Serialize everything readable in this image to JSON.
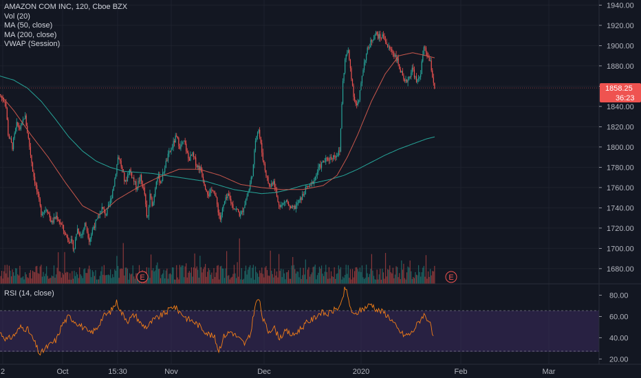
{
  "title": "AMAZON COM INC, 120, Cboe BZX",
  "indicators": [
    "Vol (20)",
    "MA (50, close)",
    "MA (200, close)",
    "VWAP (Session)"
  ],
  "rsi_title": "RSI (14, close)",
  "colors": {
    "background": "#131722",
    "up": "#26a69a",
    "down": "#ef5350",
    "ma50": "#c9574c",
    "ma200": "#26a69a",
    "rsi_line": "#f57f17",
    "rsi_band": "#3a2a5c",
    "grid": "#1e222d",
    "price_tag": "#ef5350"
  },
  "price_axis": {
    "ticks": [
      "1940.00",
      "1920.00",
      "1900.00",
      "1880.00",
      "1860.00",
      "1840.00",
      "1820.00",
      "1800.00",
      "1780.00",
      "1760.00",
      "1740.00",
      "1720.00",
      "1700.00",
      "1680.00"
    ]
  },
  "rsi_axis": {
    "ticks": [
      "80.00",
      "60.00",
      "40.00",
      "20.00"
    ]
  },
  "last_price": "1858.25",
  "countdown": "36:23",
  "earnings_markers": [
    "E",
    "E"
  ],
  "time_axis": {
    "labels": [
      "2",
      "Oct",
      "15:30",
      "Nov",
      "Dec",
      "2020",
      "Feb",
      "Mar"
    ]
  },
  "chart_data": {
    "type": "candlestick",
    "symbol": "AMAZON COM INC",
    "interval": "120",
    "exchange": "Cboe BZX",
    "y_range": [
      1665,
      1945
    ],
    "rsi_range": [
      15,
      90
    ],
    "rsi_levels": [
      70,
      30
    ],
    "price_anchors": [
      [
        0,
        1850
      ],
      [
        8,
        1845
      ],
      [
        12,
        1812
      ],
      [
        18,
        1800
      ],
      [
        24,
        1822
      ],
      [
        30,
        1818
      ],
      [
        36,
        1832
      ],
      [
        42,
        1805
      ],
      [
        48,
        1775
      ],
      [
        54,
        1755
      ],
      [
        60,
        1735
      ],
      [
        68,
        1740
      ],
      [
        75,
        1725
      ],
      [
        82,
        1732
      ],
      [
        90,
        1722
      ],
      [
        96,
        1712
      ],
      [
        102,
        1708
      ],
      [
        108,
        1700
      ],
      [
        112,
        1720
      ],
      [
        118,
        1712
      ],
      [
        124,
        1725
      ],
      [
        130,
        1708
      ],
      [
        136,
        1722
      ],
      [
        142,
        1728
      ],
      [
        148,
        1740
      ],
      [
        154,
        1733
      ],
      [
        160,
        1745
      ],
      [
        166,
        1765
      ],
      [
        172,
        1792
      ],
      [
        176,
        1782
      ],
      [
        182,
        1764
      ],
      [
        188,
        1778
      ],
      [
        194,
        1768
      ],
      [
        198,
        1760
      ],
      [
        204,
        1770
      ],
      [
        210,
        1755
      ],
      [
        214,
        1725
      ],
      [
        218,
        1752
      ],
      [
        222,
        1742
      ],
      [
        228,
        1772
      ],
      [
        234,
        1765
      ],
      [
        240,
        1782
      ],
      [
        244,
        1790
      ],
      [
        250,
        1800
      ],
      [
        256,
        1810
      ],
      [
        262,
        1800
      ],
      [
        268,
        1805
      ],
      [
        274,
        1788
      ],
      [
        280,
        1792
      ],
      [
        286,
        1782
      ],
      [
        292,
        1778
      ],
      [
        298,
        1762
      ],
      [
        304,
        1752
      ],
      [
        310,
        1760
      ],
      [
        316,
        1742
      ],
      [
        320,
        1728
      ],
      [
        326,
        1745
      ],
      [
        332,
        1752
      ],
      [
        338,
        1742
      ],
      [
        344,
        1738
      ],
      [
        350,
        1732
      ],
      [
        356,
        1745
      ],
      [
        362,
        1758
      ],
      [
        368,
        1778
      ],
      [
        372,
        1812
      ],
      [
        376,
        1818
      ],
      [
        380,
        1798
      ],
      [
        384,
        1782
      ],
      [
        388,
        1770
      ],
      [
        392,
        1760
      ],
      [
        398,
        1768
      ],
      [
        404,
        1745
      ],
      [
        410,
        1742
      ],
      [
        416,
        1748
      ],
      [
        422,
        1738
      ],
      [
        428,
        1740
      ],
      [
        434,
        1745
      ],
      [
        440,
        1752
      ],
      [
        446,
        1760
      ],
      [
        452,
        1762
      ],
      [
        458,
        1770
      ],
      [
        464,
        1780
      ],
      [
        470,
        1785
      ],
      [
        476,
        1788
      ],
      [
        482,
        1790
      ],
      [
        488,
        1792
      ],
      [
        494,
        1795
      ],
      [
        498,
        1860
      ],
      [
        502,
        1888
      ],
      [
        506,
        1895
      ],
      [
        510,
        1875
      ],
      [
        514,
        1852
      ],
      [
        518,
        1840
      ],
      [
        522,
        1845
      ],
      [
        526,
        1870
      ],
      [
        530,
        1885
      ],
      [
        534,
        1895
      ],
      [
        540,
        1905
      ],
      [
        546,
        1912
      ],
      [
        552,
        1908
      ],
      [
        558,
        1910
      ],
      [
        564,
        1898
      ],
      [
        570,
        1895
      ],
      [
        576,
        1888
      ],
      [
        582,
        1876
      ],
      [
        588,
        1862
      ],
      [
        594,
        1868
      ],
      [
        600,
        1878
      ],
      [
        606,
        1862
      ],
      [
        612,
        1875
      ],
      [
        616,
        1898
      ],
      [
        620,
        1892
      ],
      [
        626,
        1882
      ],
      [
        630,
        1865
      ],
      [
        632,
        1858
      ]
    ],
    "ma50_anchors": [
      [
        0,
        1852
      ],
      [
        20,
        1836
      ],
      [
        45,
        1812
      ],
      [
        70,
        1790
      ],
      [
        95,
        1765
      ],
      [
        120,
        1742
      ],
      [
        145,
        1733
      ],
      [
        170,
        1748
      ],
      [
        200,
        1760
      ],
      [
        230,
        1770
      ],
      [
        260,
        1778
      ],
      [
        290,
        1778
      ],
      [
        320,
        1772
      ],
      [
        350,
        1763
      ],
      [
        380,
        1760
      ],
      [
        410,
        1758
      ],
      [
        440,
        1758
      ],
      [
        470,
        1762
      ],
      [
        490,
        1772
      ],
      [
        505,
        1790
      ],
      [
        520,
        1812
      ],
      [
        540,
        1845
      ],
      [
        560,
        1872
      ],
      [
        580,
        1890
      ],
      [
        600,
        1893
      ],
      [
        620,
        1890
      ],
      [
        632,
        1888
      ]
    ],
    "ma200_anchors": [
      [
        0,
        1870
      ],
      [
        20,
        1866
      ],
      [
        40,
        1858
      ],
      [
        60,
        1845
      ],
      [
        80,
        1828
      ],
      [
        100,
        1810
      ],
      [
        120,
        1796
      ],
      [
        140,
        1786
      ],
      [
        160,
        1780
      ],
      [
        180,
        1776
      ],
      [
        200,
        1775
      ],
      [
        220,
        1774
      ],
      [
        240,
        1772
      ],
      [
        260,
        1770
      ],
      [
        280,
        1768
      ],
      [
        300,
        1766
      ],
      [
        320,
        1762
      ],
      [
        340,
        1758
      ],
      [
        360,
        1756
      ],
      [
        380,
        1754
      ],
      [
        400,
        1755
      ],
      [
        420,
        1758
      ],
      [
        440,
        1762
      ],
      [
        460,
        1765
      ],
      [
        480,
        1768
      ],
      [
        500,
        1772
      ],
      [
        520,
        1778
      ],
      [
        540,
        1785
      ],
      [
        560,
        1792
      ],
      [
        580,
        1798
      ],
      [
        600,
        1803
      ],
      [
        620,
        1808
      ],
      [
        632,
        1810
      ]
    ],
    "rsi_anchors": [
      [
        0,
        45
      ],
      [
        10,
        38
      ],
      [
        20,
        42
      ],
      [
        30,
        50
      ],
      [
        40,
        48
      ],
      [
        50,
        36
      ],
      [
        58,
        24
      ],
      [
        66,
        30
      ],
      [
        74,
        34
      ],
      [
        82,
        38
      ],
      [
        90,
        52
      ],
      [
        100,
        60
      ],
      [
        110,
        55
      ],
      [
        120,
        50
      ],
      [
        130,
        44
      ],
      [
        140,
        48
      ],
      [
        150,
        60
      ],
      [
        160,
        64
      ],
      [
        170,
        74
      ],
      [
        176,
        64
      ],
      [
        186,
        56
      ],
      [
        196,
        62
      ],
      [
        206,
        52
      ],
      [
        214,
        50
      ],
      [
        222,
        56
      ],
      [
        232,
        60
      ],
      [
        242,
        64
      ],
      [
        252,
        70
      ],
      [
        262,
        64
      ],
      [
        272,
        58
      ],
      [
        282,
        55
      ],
      [
        292,
        50
      ],
      [
        302,
        44
      ],
      [
        312,
        40
      ],
      [
        318,
        28
      ],
      [
        326,
        42
      ],
      [
        336,
        46
      ],
      [
        346,
        40
      ],
      [
        356,
        34
      ],
      [
        364,
        42
      ],
      [
        370,
        68
      ],
      [
        376,
        78
      ],
      [
        382,
        58
      ],
      [
        390,
        46
      ],
      [
        398,
        50
      ],
      [
        406,
        40
      ],
      [
        416,
        46
      ],
      [
        426,
        42
      ],
      [
        436,
        48
      ],
      [
        446,
        54
      ],
      [
        456,
        58
      ],
      [
        466,
        64
      ],
      [
        476,
        62
      ],
      [
        486,
        66
      ],
      [
        496,
        70
      ],
      [
        502,
        88
      ],
      [
        508,
        72
      ],
      [
        514,
        60
      ],
      [
        520,
        64
      ],
      [
        530,
        68
      ],
      [
        540,
        72
      ],
      [
        548,
        66
      ],
      [
        558,
        64
      ],
      [
        568,
        58
      ],
      [
        578,
        48
      ],
      [
        588,
        42
      ],
      [
        598,
        44
      ],
      [
        608,
        54
      ],
      [
        616,
        62
      ],
      [
        624,
        56
      ],
      [
        630,
        40
      ]
    ],
    "earnings_x": [
      207,
      656
    ],
    "time_ticks_x": [
      4,
      91,
      171,
      249,
      384,
      525,
      670,
      798
    ]
  }
}
